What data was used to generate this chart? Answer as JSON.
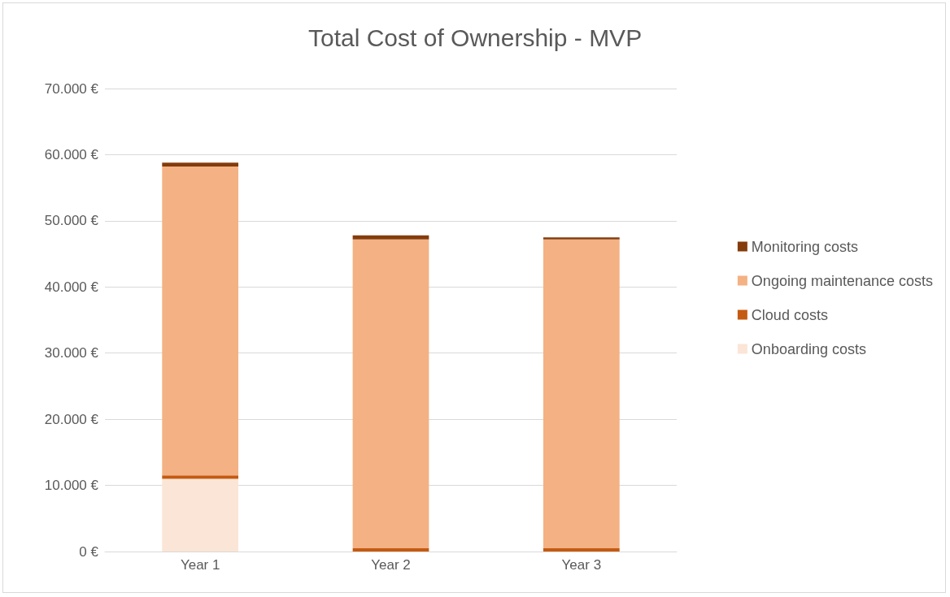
{
  "chart_data": {
    "type": "bar",
    "title": "Total Cost of Ownership - MVP",
    "categories": [
      "Year 1",
      "Year 2",
      "Year 3"
    ],
    "stacked": true,
    "series": [
      {
        "name": "Onboarding costs",
        "color": "#fbe5d6",
        "values": [
          11000,
          0,
          0
        ]
      },
      {
        "name": "Cloud costs",
        "color": "#c55a11",
        "values": [
          500,
          500,
          500
        ]
      },
      {
        "name": "Ongoing maintenance costs",
        "color": "#f4b183",
        "values": [
          46700,
          46700,
          46700
        ]
      },
      {
        "name": "Monitoring costs",
        "color": "#843c0c",
        "values": [
          600,
          600,
          300
        ]
      }
    ],
    "ylim": [
      0,
      70000
    ],
    "yticks": [
      {
        "value": 0,
        "label": "0 €"
      },
      {
        "value": 10000,
        "label": "10.000 €"
      },
      {
        "value": 20000,
        "label": "20.000 €"
      },
      {
        "value": 30000,
        "label": "30.000 €"
      },
      {
        "value": 40000,
        "label": "40.000 €"
      },
      {
        "value": 50000,
        "label": "50.000 €"
      },
      {
        "value": 60000,
        "label": "60.000 €"
      },
      {
        "value": 70000,
        "label": "70.000 €"
      }
    ],
    "grid": "y",
    "legend": "right"
  }
}
